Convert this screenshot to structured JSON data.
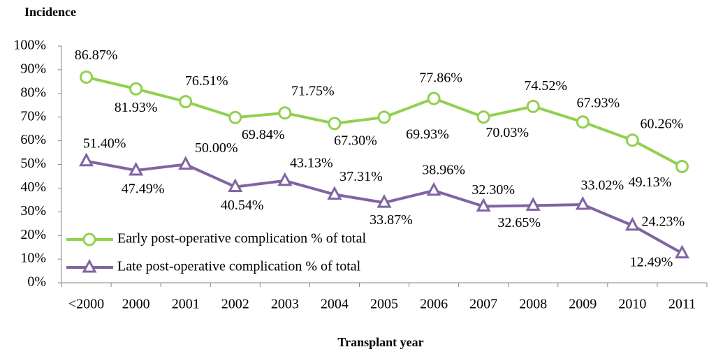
{
  "chart_data": {
    "type": "line",
    "y_label": "Incidence",
    "x_label": "Transplant year",
    "categories": [
      "<2000",
      "2000",
      "2001",
      "2002",
      "2003",
      "2004",
      "2005",
      "2006",
      "2007",
      "2008",
      "2009",
      "2010",
      "2011"
    ],
    "series": [
      {
        "name": "Early post-operative complication % of total",
        "color": "#92d050",
        "marker": "circle",
        "values": [
          86.87,
          81.93,
          76.51,
          69.84,
          71.75,
          67.3,
          69.93,
          77.86,
          70.03,
          74.52,
          67.93,
          60.26,
          49.13
        ],
        "value_labels": [
          "86.87%",
          "81.93%",
          "76.51%",
          "69.84%",
          "71.75%",
          "67.30%",
          "69.93%",
          "77.86%",
          "70.03%",
          "74.52%",
          "67.93%",
          "60.26%",
          "49.13%"
        ]
      },
      {
        "name": "Late post-operative complication % of total",
        "color": "#8064a2",
        "marker": "triangle",
        "values": [
          51.4,
          47.49,
          50.0,
          40.54,
          43.13,
          37.31,
          33.87,
          38.96,
          32.3,
          32.65,
          33.02,
          24.23,
          12.49
        ],
        "value_labels": [
          "51.40%",
          "47.49%",
          "50.00%",
          "40.54%",
          "43.13%",
          "37.31%",
          "33.87%",
          "38.96%",
          "32.30%",
          "32.65%",
          "33.02%",
          "24.23%",
          "12.49%"
        ]
      }
    ],
    "ylim": [
      0,
      100
    ],
    "yticks": [
      {
        "value": 0,
        "label": "0%"
      },
      {
        "value": 10,
        "label": "10%"
      },
      {
        "value": 20,
        "label": "20%"
      },
      {
        "value": 30,
        "label": "30%"
      },
      {
        "value": 40,
        "label": "40%"
      },
      {
        "value": 50,
        "label": "50%"
      },
      {
        "value": 60,
        "label": "60%"
      },
      {
        "value": 70,
        "label": "70%"
      },
      {
        "value": 80,
        "label": "80%"
      },
      {
        "value": 90,
        "label": "90%"
      },
      {
        "value": 100,
        "label": "100%"
      }
    ],
    "grid": false,
    "legend": "lower left"
  }
}
